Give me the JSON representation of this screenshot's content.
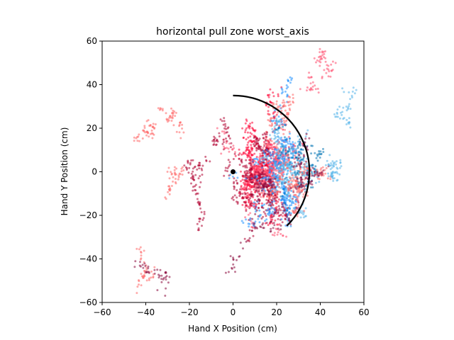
{
  "chart_data": {
    "type": "scatter",
    "title": "horizontal pull zone worst_axis",
    "xlabel": "Hand X Position (cm)",
    "ylabel": "Hand Y Position (cm)",
    "xlim": [
      -60,
      60
    ],
    "ylim": [
      -60,
      60
    ],
    "xticks": [
      "−60",
      "−40",
      "−20",
      "0",
      "20",
      "40",
      "60"
    ],
    "yticks": [
      "−60",
      "−40",
      "−20",
      "0",
      "20",
      "40",
      "60"
    ],
    "grid": false,
    "colors": {
      "series_a": "#0072b2",
      "series_b": "#1e90ff",
      "series_c": "#56b4e9",
      "series_d": "#ff0033",
      "series_e": "#ff4d6d",
      "series_f": "#b00030",
      "series_g": "#ff6666",
      "series_h": "#8b0a3c",
      "boundary_arc": "#000000",
      "origin_marker": "#000000"
    },
    "boundary_arc": {
      "center": [
        0,
        0
      ],
      "radius": 35,
      "start_angle_deg": 90,
      "end_angle_deg": -45
    },
    "origin_marker": {
      "x": 0,
      "y": 0
    },
    "clusters": [
      {
        "color_key": "series_d",
        "cx": 12,
        "cy": 2,
        "sx": 9,
        "sy": 17,
        "n": 520
      },
      {
        "color_key": "series_e",
        "cx": 14,
        "cy": 0,
        "sx": 11,
        "sy": 18,
        "n": 420
      },
      {
        "color_key": "series_f",
        "cx": 10,
        "cy": -3,
        "sx": 12,
        "sy": 20,
        "n": 360
      },
      {
        "color_key": "series_b",
        "cx": 22,
        "cy": 0,
        "sx": 10,
        "sy": 16,
        "n": 420
      },
      {
        "color_key": "series_c",
        "cx": 24,
        "cy": 3,
        "sx": 12,
        "sy": 18,
        "n": 280
      },
      {
        "color_key": "series_a",
        "cx": 28,
        "cy": 6,
        "sx": 11,
        "sy": 14,
        "n": 160
      },
      {
        "color_key": "series_g",
        "cx": 26,
        "cy": 8,
        "sx": 15,
        "sy": 20,
        "n": 300
      },
      {
        "color_key": "series_h",
        "cx": 20,
        "cy": -10,
        "sx": 18,
        "sy": 22,
        "n": 240
      },
      {
        "color_key": "series_g",
        "cx": -25,
        "cy": -5,
        "sx": 15,
        "sy": 22,
        "n": 160
      },
      {
        "color_key": "series_f",
        "cx": -15,
        "cy": 0,
        "sx": 4,
        "sy": 3,
        "n": 80
      },
      {
        "color_key": "series_h",
        "cx": -40,
        "cy": -48,
        "sx": 3,
        "sy": 6,
        "n": 40
      },
      {
        "color_key": "series_e",
        "cx": 42,
        "cy": 45,
        "sx": 5,
        "sy": 4,
        "n": 60
      },
      {
        "color_key": "series_c",
        "cx": 45,
        "cy": 5,
        "sx": 6,
        "sy": 12,
        "n": 90
      }
    ]
  }
}
